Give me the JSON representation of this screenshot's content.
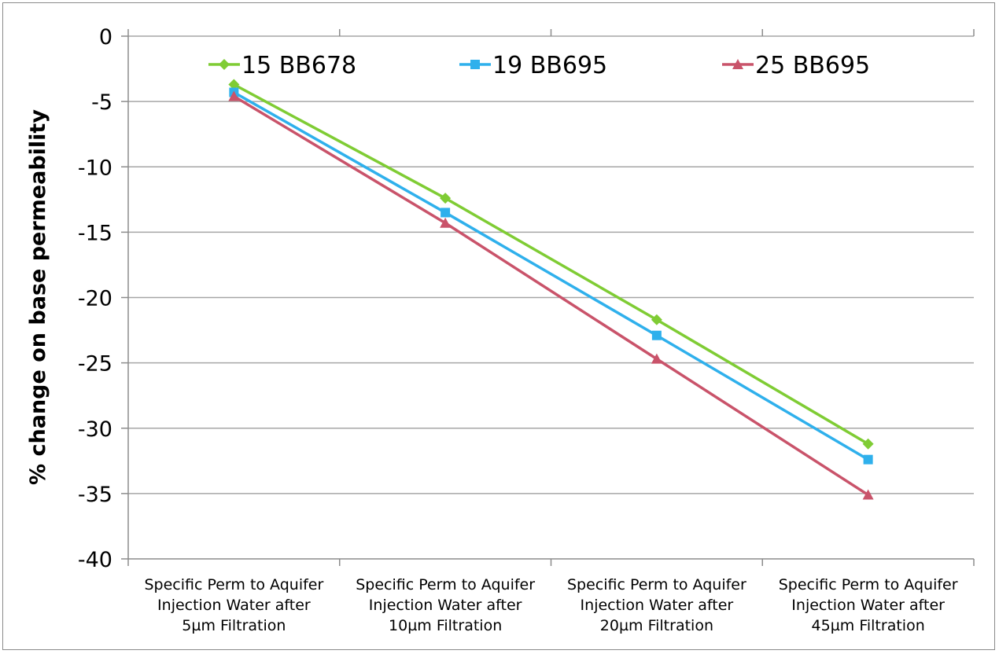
{
  "chart_data": {
    "type": "line",
    "title": "",
    "ylabel": "% change on base permeability",
    "xlabel": "",
    "ylim": [
      -40,
      0
    ],
    "y_ticks": [
      0,
      -5,
      -10,
      -15,
      -20,
      -25,
      -30,
      -35,
      -40
    ],
    "grid": "horizontal",
    "legend_position": "top",
    "categories": [
      [
        "Specific Perm to Aquifer",
        "Injection Water after",
        "5µm Filtration"
      ],
      [
        "Specific Perm to Aquifer",
        "Injection Water after",
        "10µm Filtration"
      ],
      [
        "Specific Perm to Aquifer",
        "Injection Water after",
        "20µm Filtration"
      ],
      [
        "Specific Perm to Aquifer",
        "Injection Water after",
        "45µm Filtration"
      ]
    ],
    "series": [
      {
        "name": "15 BB678",
        "color": "#7fcc34",
        "marker": "diamond",
        "values": [
          -3.7,
          -12.4,
          -21.7,
          -31.2
        ]
      },
      {
        "name": "19 BB695",
        "color": "#2fb0ec",
        "marker": "square",
        "values": [
          -4.3,
          -13.5,
          -22.9,
          -32.4
        ]
      },
      {
        "name": "25 BB695",
        "color": "#c9536a",
        "marker": "triangle",
        "values": [
          -4.6,
          -14.3,
          -24.7,
          -35.1
        ]
      }
    ]
  }
}
